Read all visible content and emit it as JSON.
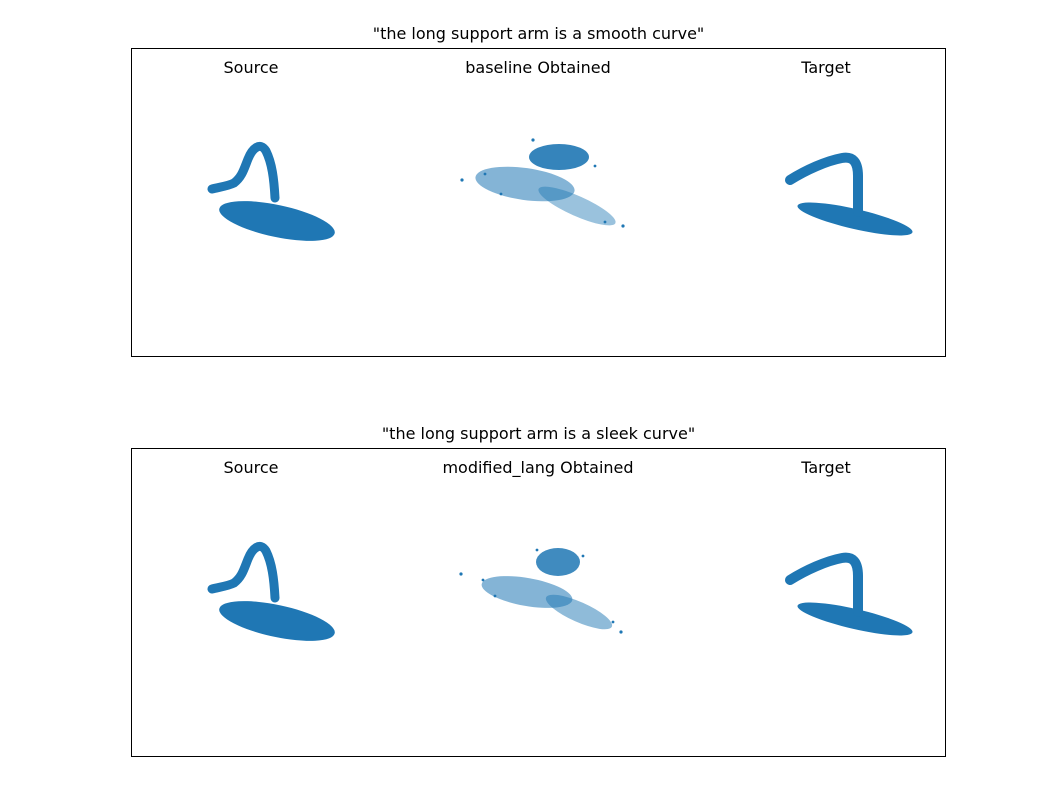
{
  "rows": [
    {
      "title": "\"the long support arm is a smooth curve\"",
      "labels": {
        "source": "Source",
        "obtained": "baseline Obtained",
        "target": "Target"
      }
    },
    {
      "title": "\"the long support arm is a sleek curve\"",
      "labels": {
        "source": "Source",
        "obtained": "modified_lang Obtained",
        "target": "Target"
      }
    }
  ],
  "colors": {
    "points": "#1f77b4",
    "frame": "#000000"
  }
}
